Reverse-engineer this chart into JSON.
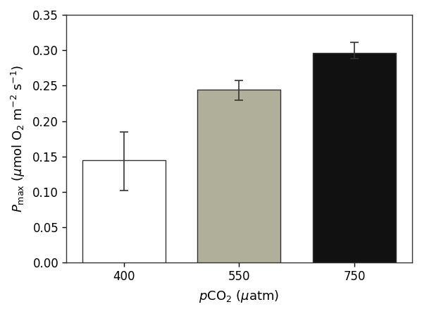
{
  "categories": [
    "400",
    "550",
    "750"
  ],
  "values": [
    0.145,
    0.244,
    0.296
  ],
  "errors_upper": [
    0.04,
    0.013,
    0.015
  ],
  "errors_lower": [
    0.043,
    0.015,
    0.008
  ],
  "bar_colors": [
    "#ffffff",
    "#b0b09a",
    "#111111"
  ],
  "bar_edgecolors": [
    "#333333",
    "#333333",
    "#333333"
  ],
  "bar_width": 0.72,
  "xlim": [
    -0.5,
    2.5
  ],
  "ylim": [
    0,
    0.35
  ],
  "yticks": [
    0.0,
    0.05,
    0.1,
    0.15,
    0.2,
    0.25,
    0.3,
    0.35
  ],
  "tick_fontsize": 12,
  "label_fontsize": 13,
  "background_color": "#ffffff",
  "spine_color": "#333333"
}
